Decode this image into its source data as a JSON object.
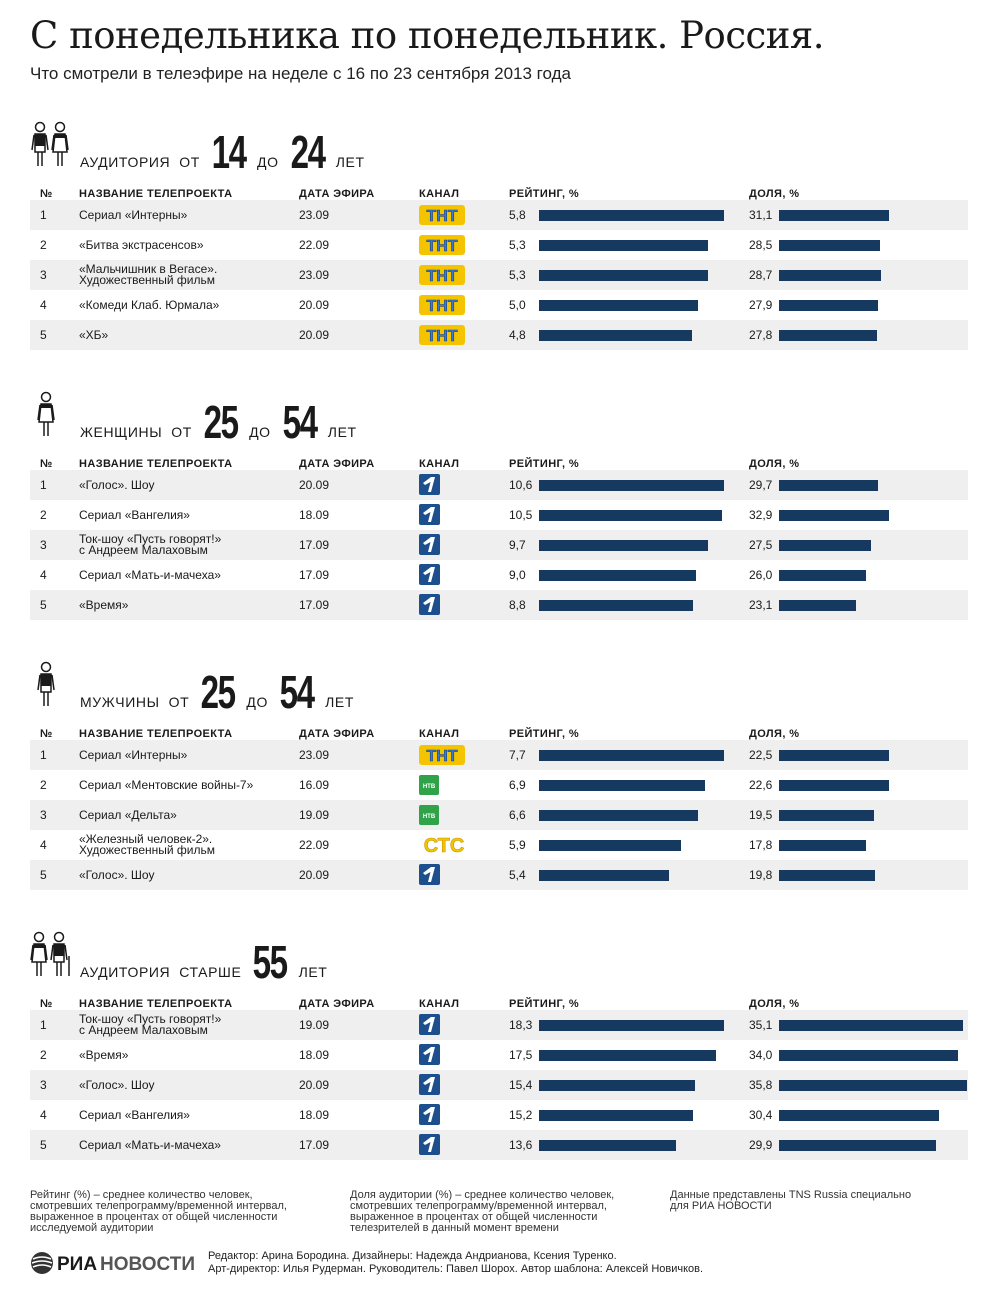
{
  "title": "С понедельника по понедельник. Россия.",
  "subtitle": "Что смотрели в телеэфире на неделе с 16 по 23 сентября 2013 года",
  "columns": {
    "num": "№",
    "name": "НАЗВАНИЕ ТЕЛЕПРОЕКТА",
    "date": "ДАТА ЭФИРА",
    "channel": "КАНАЛ",
    "rating": "РЕЙТИНГ, %",
    "share": "ДОЛЯ, %"
  },
  "colors": {
    "bar": "#163a5f",
    "row_alt": "#efefef",
    "tnt_yellow": "#f5c400",
    "tnt_blue": "#3a7bd5",
    "ntv_green": "#2fa24a",
    "ctc_yellow": "#f5c400",
    "first_blue": "#1c4f8c"
  },
  "chart_data": [
    {
      "type": "bar",
      "icon": "young-couple-icon",
      "label_parts": [
        "АУДИТОРИЯ",
        "ОТ",
        "14",
        "ДО",
        "24",
        "ЛЕТ"
      ],
      "rows": [
        {
          "num": "1",
          "name": "Сериал «Интерны»",
          "date": "23.09",
          "channel": "tnt",
          "rating": 5.8,
          "rating_label": "5,8",
          "share": 31.1,
          "share_label": "31,1"
        },
        {
          "num": "2",
          "name": "«Битва экстрасенсов»",
          "date": "22.09",
          "channel": "tnt",
          "rating": 5.3,
          "rating_label": "5,3",
          "share": 28.5,
          "share_label": "28,5"
        },
        {
          "num": "3",
          "name": "«Мальчишник в Вегасе».\nХудожественный фильм",
          "date": "23.09",
          "channel": "tnt",
          "rating": 5.3,
          "rating_label": "5,3",
          "share": 28.7,
          "share_label": "28,7"
        },
        {
          "num": "4",
          "name": "«Комеди Клаб. Юрмала»",
          "date": "20.09",
          "channel": "tnt",
          "rating": 5.0,
          "rating_label": "5,0",
          "share": 27.9,
          "share_label": "27,9"
        },
        {
          "num": "5",
          "name": "«ХБ»",
          "date": "20.09",
          "channel": "tnt",
          "rating": 4.8,
          "rating_label": "4,8",
          "share": 27.8,
          "share_label": "27,8"
        }
      ]
    },
    {
      "type": "bar",
      "icon": "woman-icon",
      "label_parts": [
        "ЖЕНЩИНЫ",
        "ОТ",
        "25",
        "ДО",
        "54",
        "ЛЕТ"
      ],
      "rows": [
        {
          "num": "1",
          "name": "«Голос». Шоу",
          "date": "20.09",
          "channel": "first",
          "rating": 10.6,
          "rating_label": "10,6",
          "share": 29.7,
          "share_label": "29,7"
        },
        {
          "num": "2",
          "name": "Сериал «Вангелия»",
          "date": "18.09",
          "channel": "first",
          "rating": 10.5,
          "rating_label": "10,5",
          "share": 32.9,
          "share_label": "32,9"
        },
        {
          "num": "3",
          "name": "Ток-шоу «Пусть говорят!»\nс Андреем Малаховым",
          "date": "17.09",
          "channel": "first",
          "rating": 9.7,
          "rating_label": "9,7",
          "share": 27.5,
          "share_label": "27,5"
        },
        {
          "num": "4",
          "name": "Сериал «Мать-и-мачеха»",
          "date": "17.09",
          "channel": "first",
          "rating": 9.0,
          "rating_label": "9,0",
          "share": 26.0,
          "share_label": "26,0"
        },
        {
          "num": "5",
          "name": "«Время»",
          "date": "17.09",
          "channel": "first",
          "rating": 8.8,
          "rating_label": "8,8",
          "share": 23.1,
          "share_label": "23,1"
        }
      ]
    },
    {
      "type": "bar",
      "icon": "man-icon",
      "label_parts": [
        "МУЖЧИНЫ",
        "ОТ",
        "25",
        "ДО",
        "54",
        "ЛЕТ"
      ],
      "rows": [
        {
          "num": "1",
          "name": "Сериал «Интерны»",
          "date": "23.09",
          "channel": "tnt",
          "rating": 7.7,
          "rating_label": "7,7",
          "share": 22.5,
          "share_label": "22,5"
        },
        {
          "num": "2",
          "name": "Сериал «Ментовские войны-7»",
          "date": "16.09",
          "channel": "ntv",
          "rating": 6.9,
          "rating_label": "6,9",
          "share": 22.6,
          "share_label": "22,6"
        },
        {
          "num": "3",
          "name": "Сериал «Дельта»",
          "date": "19.09",
          "channel": "ntv",
          "rating": 6.6,
          "rating_label": "6,6",
          "share": 19.5,
          "share_label": "19,5"
        },
        {
          "num": "4",
          "name": "«Железный человек-2».\nХудожественный фильм",
          "date": "22.09",
          "channel": "ctc",
          "rating": 5.9,
          "rating_label": "5,9",
          "share": 17.8,
          "share_label": "17,8"
        },
        {
          "num": "5",
          "name": "«Голос». Шоу",
          "date": "20.09",
          "channel": "first",
          "rating": 5.4,
          "rating_label": "5,4",
          "share": 19.8,
          "share_label": "19,8"
        }
      ]
    },
    {
      "type": "bar",
      "icon": "elderly-couple-icon",
      "label_parts": [
        "АУДИТОРИЯ",
        "СТАРШЕ",
        "55",
        "ЛЕТ"
      ],
      "rows": [
        {
          "num": "1",
          "name": "Ток-шоу «Пусть говорят!»\nс Андреем Малаховым",
          "date": "19.09",
          "channel": "first",
          "rating": 18.3,
          "rating_label": "18,3",
          "share": 35.1,
          "share_label": "35,1"
        },
        {
          "num": "2",
          "name": "«Время»",
          "date": "18.09",
          "channel": "first",
          "rating": 17.5,
          "rating_label": "17,5",
          "share": 34.0,
          "share_label": "34,0"
        },
        {
          "num": "3",
          "name": "«Голос». Шоу",
          "date": "20.09",
          "channel": "first",
          "rating": 15.4,
          "rating_label": "15,4",
          "share": 35.8,
          "share_label": "35,8"
        },
        {
          "num": "4",
          "name": "Сериал «Вангелия»",
          "date": "18.09",
          "channel": "first",
          "rating": 15.2,
          "rating_label": "15,2",
          "share": 30.4,
          "share_label": "30,4"
        },
        {
          "num": "5",
          "name": "Сериал «Мать-и-мачеха»",
          "date": "17.09",
          "channel": "first",
          "rating": 13.6,
          "rating_label": "13,6",
          "share": 29.9,
          "share_label": "29,9"
        }
      ]
    }
  ],
  "notes": {
    "rating_def": "Рейтинг (%) – среднее количество человек,\nсмотревших телепрограмму/временной интервал,\nвыраженное в процентах от общей численности\nисследуемой аудитории",
    "share_def": "Доля аудитории (%) – среднее количество человек,\nсмотревших телепрограмму/временной интервал,\nвыраженное в процентах от общей численности\nтелезрителей в данный момент времени",
    "source": "Данные представлены TNS Russia специально\nдля РИА НОВОСТИ"
  },
  "footer": {
    "logo_bold": "РИА",
    "logo_light": "НОВОСТИ",
    "credits_line1": "Редактор: Арина Бородина. Дизайнеры: Надежда Андрианова, Ксения Туренко.",
    "credits_line2": "Арт-директор: Илья Рудерман. Руководитель: Павел Шорох. Автор шаблона: Алексей Новичков."
  },
  "channel_labels": {
    "tnt": "ТНТ",
    "ntv": "НТВ",
    "ctc": "СТС",
    "first": "1"
  }
}
